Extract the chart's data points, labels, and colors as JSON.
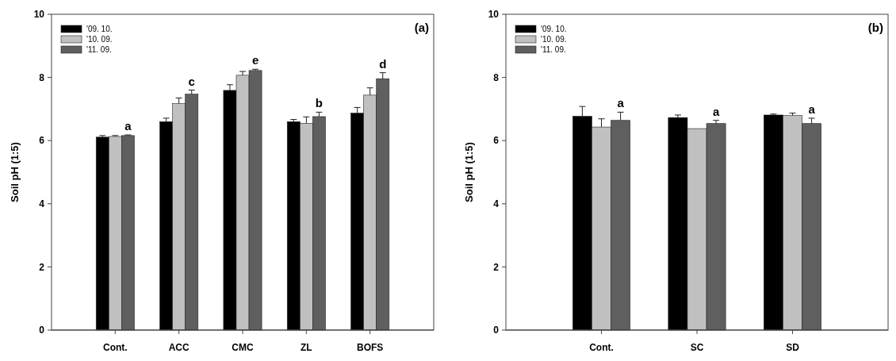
{
  "chart_data": [
    {
      "type": "bar",
      "title": "(a)",
      "ylabel": "Soil pH (1:5)",
      "categories": [
        "Cont.",
        "ACC",
        "CMC",
        "ZL",
        "BOFS"
      ],
      "ylim": [
        0,
        10
      ],
      "yticks": [
        0,
        2,
        4,
        6,
        8,
        10
      ],
      "legend": "top left",
      "series": [
        {
          "name": "'09. 10.",
          "color": "#000000",
          "values": [
            6.11,
            6.6,
            7.59,
            6.6,
            6.87
          ],
          "errors": [
            [
              6.11,
              6.16
            ],
            [
              6.6,
              6.71
            ],
            [
              7.59,
              7.77
            ],
            [
              6.6,
              6.67
            ],
            [
              6.87,
              7.05
            ]
          ]
        },
        {
          "name": "'10. 09.",
          "color": "#c0c0c0",
          "values": [
            6.13,
            7.17,
            8.07,
            6.55,
            7.44
          ],
          "errors": [
            [
              6.13,
              6.16
            ],
            [
              7.17,
              7.35
            ],
            [
              8.07,
              8.19
            ],
            [
              6.55,
              6.75
            ],
            [
              7.44,
              7.67
            ]
          ]
        },
        {
          "name": "'11. 09.",
          "color": "#5f5f5f",
          "values": [
            6.16,
            7.47,
            8.22,
            6.76,
            7.96
          ],
          "errors": [
            [
              6.16,
              6.18
            ],
            [
              7.47,
              7.6
            ],
            [
              8.22,
              8.26
            ],
            [
              6.76,
              6.9
            ],
            [
              7.96,
              8.15
            ]
          ]
        }
      ],
      "annotations": [
        "a",
        "c",
        "e",
        "b",
        "d"
      ]
    },
    {
      "type": "bar",
      "title": "(b)",
      "ylabel": "Soil pH (1:5)",
      "categories": [
        "Cont.",
        "SC",
        "SD"
      ],
      "ylim": [
        0,
        10
      ],
      "yticks": [
        0,
        2,
        4,
        6,
        8,
        10
      ],
      "legend": "top left",
      "series": [
        {
          "name": "'09. 10.",
          "color": "#000000",
          "values": [
            6.77,
            6.73,
            6.81
          ],
          "errors": [
            [
              6.77,
              7.08
            ],
            [
              6.73,
              6.81
            ],
            [
              6.81,
              6.84
            ]
          ]
        },
        {
          "name": "'10. 09.",
          "color": "#c0c0c0",
          "values": [
            6.43,
            6.38,
            6.8
          ],
          "errors": [
            [
              6.43,
              6.69
            ],
            null,
            [
              6.8,
              6.87
            ]
          ]
        },
        {
          "name": "'11. 09.",
          "color": "#5f5f5f",
          "values": [
            6.64,
            6.54,
            6.54
          ],
          "errors": [
            [
              6.64,
              6.9
            ],
            [
              6.54,
              6.64
            ],
            [
              6.54,
              6.71
            ]
          ]
        }
      ],
      "annotations": [
        "a",
        "a",
        "a"
      ]
    }
  ]
}
